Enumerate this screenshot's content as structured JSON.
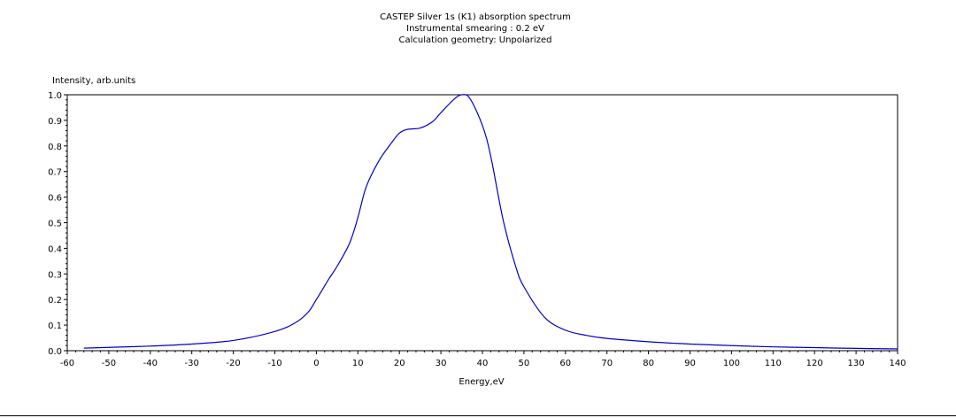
{
  "chart_data": {
    "type": "line",
    "title_lines": [
      "CASTEP Silver 1s (K1) absorption spectrum",
      "Instrumental smearing : 0.2 eV",
      "Calculation geometry: Unpolarized"
    ],
    "xlabel": "Energy,eV",
    "ylabel": "Intensity, arb.units",
    "xlim": [
      -60,
      140
    ],
    "ylim": [
      0,
      1.0
    ],
    "xticks": [
      -60,
      -50,
      -40,
      -30,
      -20,
      -10,
      0,
      10,
      20,
      30,
      40,
      50,
      60,
      70,
      80,
      90,
      100,
      110,
      120,
      130,
      140
    ],
    "yticks": [
      "0.0",
      "0.1",
      "0.2",
      "0.3",
      "0.4",
      "0.5",
      "0.6",
      "0.7",
      "0.8",
      "0.9",
      "1.0"
    ],
    "grid": false,
    "line_color": "#0000cc",
    "series": [
      {
        "x": [
          -56,
          -50,
          -40,
          -30,
          -20,
          -10,
          -5,
          -2,
          0,
          3,
          5,
          8,
          10,
          12,
          15,
          18,
          20,
          22,
          25,
          28,
          30,
          33,
          35,
          37,
          40,
          42,
          45,
          48,
          50,
          55,
          60,
          65,
          70,
          80,
          90,
          100,
          110,
          120,
          130,
          140
        ],
        "y": [
          0.01,
          0.013,
          0.018,
          0.026,
          0.04,
          0.075,
          0.11,
          0.15,
          0.2,
          0.28,
          0.33,
          0.42,
          0.52,
          0.64,
          0.74,
          0.81,
          0.85,
          0.865,
          0.87,
          0.895,
          0.93,
          0.98,
          1.0,
          0.985,
          0.88,
          0.76,
          0.51,
          0.33,
          0.25,
          0.13,
          0.08,
          0.06,
          0.048,
          0.035,
          0.026,
          0.02,
          0.015,
          0.012,
          0.009,
          0.007
        ]
      }
    ]
  }
}
